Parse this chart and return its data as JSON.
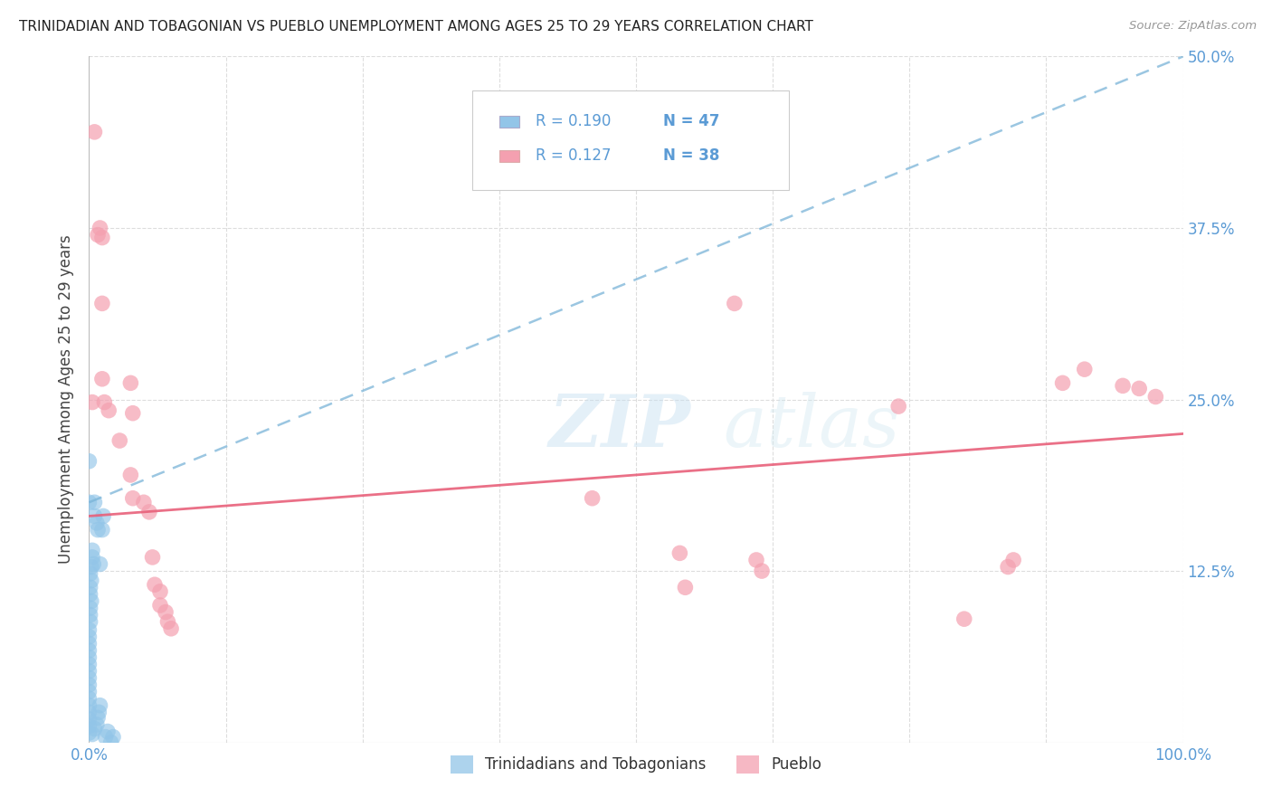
{
  "title": "TRINIDADIAN AND TOBAGONIAN VS PUEBLO UNEMPLOYMENT AMONG AGES 25 TO 29 YEARS CORRELATION CHART",
  "source": "Source: ZipAtlas.com",
  "ylabel": "Unemployment Among Ages 25 to 29 years",
  "xlim": [
    0,
    1.0
  ],
  "ylim": [
    0,
    0.5
  ],
  "xticks": [
    0.0,
    0.125,
    0.25,
    0.375,
    0.5,
    0.625,
    0.75,
    0.875,
    1.0
  ],
  "xticklabels": [
    "0.0%",
    "",
    "",
    "",
    "",
    "",
    "",
    "",
    "100.0%"
  ],
  "yticks_right": [
    0.0,
    0.125,
    0.25,
    0.375,
    0.5
  ],
  "yticklabels_right": [
    "",
    "12.5%",
    "25.0%",
    "37.5%",
    "50.0%"
  ],
  "r1": 0.19,
  "r2": 0.127,
  "n1": 47,
  "n2": 38,
  "blue_color": "#92c5e8",
  "pink_color": "#f4a0b0",
  "blue_line_color": "#7ab4d8",
  "pink_line_color": "#e8607a",
  "watermark": "ZIPatlas",
  "blue_trend": [
    0.0,
    0.175,
    1.0,
    0.5
  ],
  "pink_trend": [
    0.0,
    0.165,
    1.0,
    0.225
  ],
  "blue_dots": [
    [
      0.0,
      0.205
    ],
    [
      0.0,
      0.175
    ],
    [
      0.005,
      0.175
    ],
    [
      0.005,
      0.165
    ],
    [
      0.007,
      0.16
    ],
    [
      0.008,
      0.155
    ],
    [
      0.003,
      0.14
    ],
    [
      0.003,
      0.135
    ],
    [
      0.004,
      0.13
    ],
    [
      0.002,
      0.128
    ],
    [
      0.001,
      0.123
    ],
    [
      0.002,
      0.118
    ],
    [
      0.001,
      0.113
    ],
    [
      0.001,
      0.108
    ],
    [
      0.002,
      0.103
    ],
    [
      0.001,
      0.098
    ],
    [
      0.001,
      0.093
    ],
    [
      0.001,
      0.088
    ],
    [
      0.0,
      0.082
    ],
    [
      0.0,
      0.077
    ],
    [
      0.0,
      0.072
    ],
    [
      0.0,
      0.067
    ],
    [
      0.0,
      0.062
    ],
    [
      0.0,
      0.057
    ],
    [
      0.0,
      0.052
    ],
    [
      0.0,
      0.047
    ],
    [
      0.0,
      0.042
    ],
    [
      0.0,
      0.037
    ],
    [
      0.0,
      0.032
    ],
    [
      0.0,
      0.027
    ],
    [
      0.0,
      0.022
    ],
    [
      0.0,
      0.017
    ],
    [
      0.0,
      0.012
    ],
    [
      0.0,
      0.007
    ],
    [
      0.003,
      0.006
    ],
    [
      0.005,
      0.01
    ],
    [
      0.007,
      0.013
    ],
    [
      0.008,
      0.018
    ],
    [
      0.009,
      0.022
    ],
    [
      0.01,
      0.027
    ],
    [
      0.01,
      0.13
    ],
    [
      0.012,
      0.155
    ],
    [
      0.013,
      0.165
    ],
    [
      0.015,
      0.004
    ],
    [
      0.017,
      0.008
    ],
    [
      0.02,
      0.0
    ],
    [
      0.022,
      0.004
    ]
  ],
  "pink_dots": [
    [
      0.005,
      0.445
    ],
    [
      0.008,
      0.37
    ],
    [
      0.01,
      0.375
    ],
    [
      0.012,
      0.368
    ],
    [
      0.012,
      0.32
    ],
    [
      0.012,
      0.265
    ],
    [
      0.014,
      0.248
    ],
    [
      0.003,
      0.248
    ],
    [
      0.018,
      0.242
    ],
    [
      0.028,
      0.22
    ],
    [
      0.038,
      0.262
    ],
    [
      0.04,
      0.24
    ],
    [
      0.038,
      0.195
    ],
    [
      0.04,
      0.178
    ],
    [
      0.05,
      0.175
    ],
    [
      0.055,
      0.168
    ],
    [
      0.46,
      0.178
    ],
    [
      0.058,
      0.135
    ],
    [
      0.06,
      0.115
    ],
    [
      0.065,
      0.11
    ],
    [
      0.065,
      0.1
    ],
    [
      0.07,
      0.095
    ],
    [
      0.072,
      0.088
    ],
    [
      0.075,
      0.083
    ],
    [
      0.54,
      0.138
    ],
    [
      0.545,
      0.113
    ],
    [
      0.59,
      0.32
    ],
    [
      0.61,
      0.133
    ],
    [
      0.615,
      0.125
    ],
    [
      0.74,
      0.245
    ],
    [
      0.8,
      0.09
    ],
    [
      0.84,
      0.128
    ],
    [
      0.845,
      0.133
    ],
    [
      0.89,
      0.262
    ],
    [
      0.91,
      0.272
    ],
    [
      0.945,
      0.26
    ],
    [
      0.96,
      0.258
    ],
    [
      0.975,
      0.252
    ]
  ]
}
